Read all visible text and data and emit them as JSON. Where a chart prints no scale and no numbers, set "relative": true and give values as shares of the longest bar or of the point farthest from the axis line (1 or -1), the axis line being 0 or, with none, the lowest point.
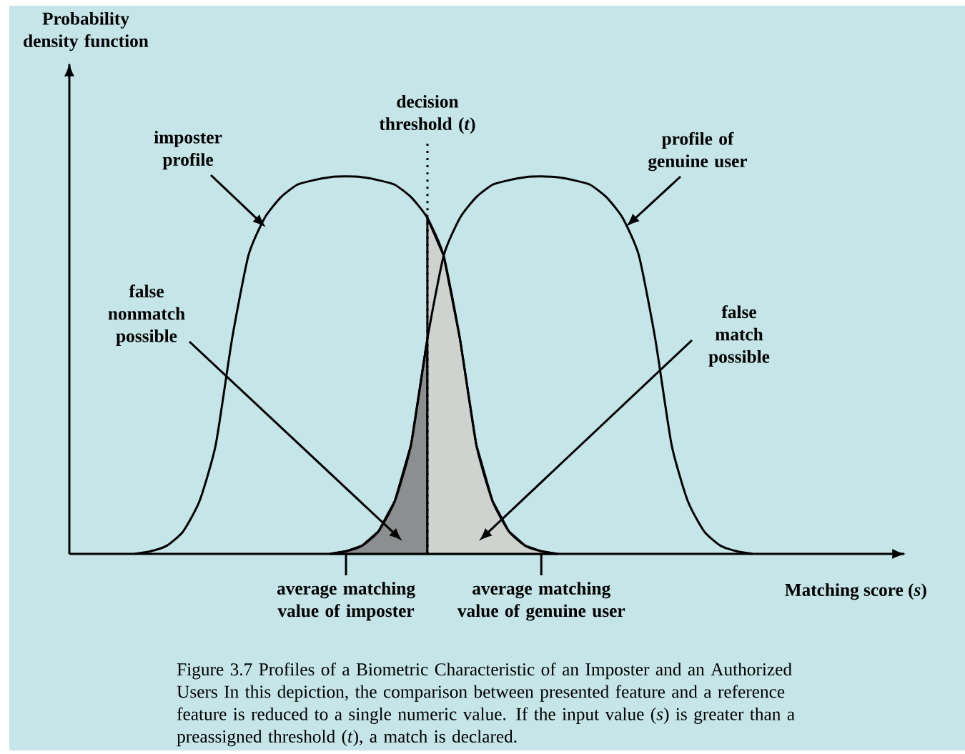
{
  "chart_data": {
    "type": "line",
    "xlabel": "Matching score (*s*)",
    "relative": true,
    "categories": [
      null,
      null,
      null,
      null,
      null,
      null,
      null,
      null,
      null,
      null,
      null,
      null,
      null,
      null,
      null,
      null,
      null,
      "average matching value of imposter",
      null,
      null,
      null,
      null,
      null,
      null,
      null,
      null,
      null,
      null,
      null,
      "average matching value of genuine user",
      null,
      null,
      null,
      null,
      null,
      null,
      null,
      null,
      null,
      null,
      null,
      null,
      null,
      null,
      null,
      null,
      null,
      null,
      null,
      null,
      null
    ],
    "series": [
      {
        "type": "area",
        "color": "#8c8f8f",
        "values": [
          null,
          null,
          null,
          null,
          null,
          null,
          null,
          null,
          null,
          null,
          null,
          null,
          null,
          null,
          null,
          null,
          0,
          0.007,
          0.022,
          0.06,
          0.14,
          0.29,
          0.57,
          null,
          null,
          null,
          null,
          null,
          null,
          null,
          null,
          null,
          null,
          null,
          null,
          null,
          null,
          null,
          null,
          null,
          null,
          null,
          null,
          null,
          null,
          null,
          null,
          null,
          null,
          null,
          null
        ]
      },
      {
        "type": "area",
        "color": "#cfd3d0",
        "values": [
          null,
          null,
          null,
          null,
          null,
          null,
          null,
          null,
          null,
          null,
          null,
          null,
          null,
          null,
          null,
          null,
          null,
          null,
          null,
          null,
          null,
          null,
          0.89,
          0.79,
          0.57,
          0.29,
          0.14,
          0.06,
          0.022,
          0.007,
          0,
          null,
          null,
          null,
          null,
          null,
          null,
          null,
          null,
          null,
          null,
          null,
          null,
          null,
          null,
          null,
          null,
          null,
          null,
          null,
          null
        ]
      },
      {
        "color": "#000000",
        "values": [
          null,
          null,
          null,
          null,
          0,
          0.007,
          0.022,
          0.06,
          0.14,
          0.29,
          0.57,
          0.79,
          0.89,
          0.945,
          0.978,
          0.99,
          0.998,
          1,
          0.998,
          0.99,
          0.978,
          0.945,
          0.89,
          0.79,
          0.57,
          0.29,
          0.14,
          0.06,
          0.022,
          0.007,
          0,
          null,
          null,
          null,
          null,
          null,
          null,
          null,
          null,
          null,
          null,
          null,
          null,
          null,
          null,
          null,
          null,
          null,
          null,
          null,
          null
        ]
      },
      {
        "color": "#000000",
        "values": [
          null,
          null,
          null,
          null,
          null,
          null,
          null,
          null,
          null,
          null,
          null,
          null,
          null,
          null,
          null,
          null,
          0,
          0.007,
          0.022,
          0.06,
          0.14,
          0.29,
          0.57,
          0.79,
          0.89,
          0.945,
          0.978,
          0.99,
          0.998,
          1,
          0.998,
          0.99,
          0.978,
          0.945,
          0.89,
          0.79,
          0.57,
          0.29,
          0.14,
          0.06,
          0.022,
          0.007,
          0,
          null,
          null,
          null,
          null,
          null,
          null,
          null,
          null
        ]
      }
    ],
    "annotations": [
      "Probability density function",
      "decision threshold (*t*)",
      "imposter profile",
      "profile of genuine user",
      "false nonmatch possible",
      "false match possible",
      "Figure 3.7 Profiles of a Biometric Characteristic of an Imposter and an Authorized Users In this depiction, the comparison between presented feature and a reference feature is reduced to a single numeric value. If the input value (*s*) is greater than a preassigned threshold (*t*), a match is declared."
    ]
  }
}
